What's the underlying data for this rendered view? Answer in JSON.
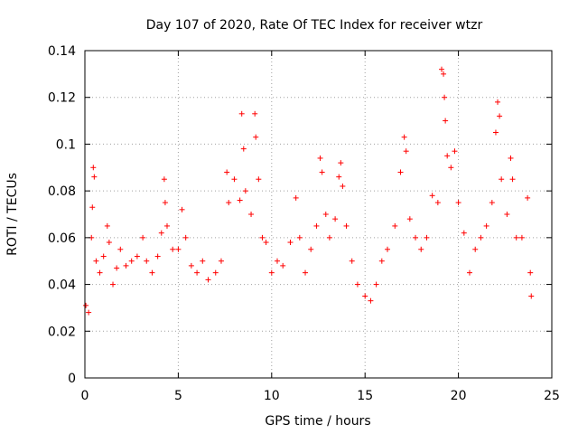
{
  "chart_data": {
    "type": "scatter",
    "title": "Day 107 of 2020, Rate Of TEC Index for receiver wtzr",
    "xlabel": "GPS time / hours",
    "ylabel": "ROTI / TECUs",
    "xlim": [
      0,
      25
    ],
    "ylim": [
      0,
      0.14
    ],
    "xticks": [
      0,
      5,
      10,
      15,
      20,
      25
    ],
    "yticks": [
      0,
      0.02,
      0.04,
      0.06,
      0.08,
      0.1,
      0.12,
      0.14
    ],
    "xtick_labels": [
      "0",
      "5",
      "10",
      "15",
      "20",
      "25"
    ],
    "ytick_labels": [
      "0",
      "0.02",
      "0.04",
      "0.06",
      "0.08",
      "0.1",
      "0.12",
      "0.14"
    ],
    "grid": true,
    "marker": "+",
    "color": "#ff0000",
    "series": [
      {
        "name": "ROTI",
        "points": [
          [
            0.05,
            0.031
          ],
          [
            0.2,
            0.028
          ],
          [
            0.35,
            0.06
          ],
          [
            0.45,
            0.09
          ],
          [
            0.5,
            0.086
          ],
          [
            0.4,
            0.073
          ],
          [
            0.6,
            0.05
          ],
          [
            0.8,
            0.045
          ],
          [
            1.0,
            0.052
          ],
          [
            1.2,
            0.065
          ],
          [
            1.3,
            0.058
          ],
          [
            1.5,
            0.04
          ],
          [
            1.7,
            0.047
          ],
          [
            1.9,
            0.055
          ],
          [
            2.2,
            0.048
          ],
          [
            2.5,
            0.05
          ],
          [
            2.8,
            0.052
          ],
          [
            3.1,
            0.06
          ],
          [
            3.3,
            0.05
          ],
          [
            3.6,
            0.045
          ],
          [
            3.9,
            0.052
          ],
          [
            4.1,
            0.062
          ],
          [
            4.25,
            0.085
          ],
          [
            4.3,
            0.075
          ],
          [
            4.4,
            0.065
          ],
          [
            4.7,
            0.055
          ],
          [
            5.0,
            0.055
          ],
          [
            5.2,
            0.072
          ],
          [
            5.4,
            0.06
          ],
          [
            5.7,
            0.048
          ],
          [
            6.0,
            0.045
          ],
          [
            6.3,
            0.05
          ],
          [
            6.6,
            0.042
          ],
          [
            7.0,
            0.045
          ],
          [
            7.3,
            0.05
          ],
          [
            7.6,
            0.088
          ],
          [
            7.7,
            0.075
          ],
          [
            8.0,
            0.085
          ],
          [
            8.3,
            0.076
          ],
          [
            8.4,
            0.113
          ],
          [
            8.5,
            0.098
          ],
          [
            8.6,
            0.08
          ],
          [
            8.9,
            0.07
          ],
          [
            9.1,
            0.113
          ],
          [
            9.15,
            0.103
          ],
          [
            9.3,
            0.085
          ],
          [
            9.5,
            0.06
          ],
          [
            9.7,
            0.058
          ],
          [
            10.0,
            0.045
          ],
          [
            10.3,
            0.05
          ],
          [
            10.6,
            0.048
          ],
          [
            11.0,
            0.058
          ],
          [
            11.3,
            0.077
          ],
          [
            11.5,
            0.06
          ],
          [
            11.8,
            0.045
          ],
          [
            12.1,
            0.055
          ],
          [
            12.4,
            0.065
          ],
          [
            12.6,
            0.094
          ],
          [
            12.7,
            0.088
          ],
          [
            12.9,
            0.07
          ],
          [
            13.1,
            0.06
          ],
          [
            13.4,
            0.068
          ],
          [
            13.6,
            0.086
          ],
          [
            13.7,
            0.092
          ],
          [
            13.8,
            0.082
          ],
          [
            14.0,
            0.065
          ],
          [
            14.3,
            0.05
          ],
          [
            14.6,
            0.04
          ],
          [
            15.0,
            0.035
          ],
          [
            15.3,
            0.033
          ],
          [
            15.6,
            0.04
          ],
          [
            15.9,
            0.05
          ],
          [
            16.2,
            0.055
          ],
          [
            16.6,
            0.065
          ],
          [
            16.9,
            0.088
          ],
          [
            17.1,
            0.103
          ],
          [
            17.2,
            0.097
          ],
          [
            17.4,
            0.068
          ],
          [
            17.7,
            0.06
          ],
          [
            18.0,
            0.055
          ],
          [
            18.3,
            0.06
          ],
          [
            18.6,
            0.078
          ],
          [
            18.9,
            0.075
          ],
          [
            19.1,
            0.132
          ],
          [
            19.2,
            0.13
          ],
          [
            19.25,
            0.12
          ],
          [
            19.3,
            0.11
          ],
          [
            19.4,
            0.095
          ],
          [
            19.6,
            0.09
          ],
          [
            19.8,
            0.097
          ],
          [
            20.0,
            0.075
          ],
          [
            20.3,
            0.062
          ],
          [
            20.6,
            0.045
          ],
          [
            20.9,
            0.055
          ],
          [
            21.2,
            0.06
          ],
          [
            21.5,
            0.065
          ],
          [
            21.8,
            0.075
          ],
          [
            22.0,
            0.105
          ],
          [
            22.1,
            0.118
          ],
          [
            22.2,
            0.112
          ],
          [
            22.3,
            0.085
          ],
          [
            22.6,
            0.07
          ],
          [
            22.8,
            0.094
          ],
          [
            22.9,
            0.085
          ],
          [
            23.1,
            0.06
          ],
          [
            23.4,
            0.06
          ],
          [
            23.7,
            0.077
          ],
          [
            23.85,
            0.045
          ],
          [
            23.9,
            0.035
          ]
        ]
      }
    ]
  }
}
